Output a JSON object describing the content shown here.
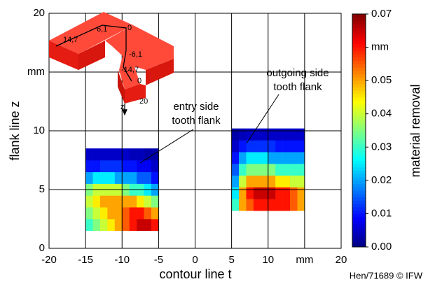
{
  "chart_data": {
    "type": "heatmap",
    "xlabel": "contour line t",
    "ylabel": "flank line z",
    "colorbar_label": "material removal",
    "footer": "Hen/71689 © IFW",
    "xlim": [
      -20,
      20
    ],
    "ylim": [
      0,
      20
    ],
    "xticks": [
      -20,
      -15,
      -10,
      -5,
      0,
      5,
      10,
      {
        "value": 15,
        "label": "mm"
      },
      20
    ],
    "yticks": [
      0,
      5,
      10,
      {
        "value": 15,
        "label": "mm"
      },
      20
    ],
    "grid": true,
    "colormap": "jet",
    "clim": [
      0,
      0.07
    ],
    "cticks": [
      {
        "value": 0,
        "label": "0.00"
      },
      0.01,
      0.02,
      0.03,
      0.04,
      0.05,
      {
        "value": 0.06,
        "label": "mm"
      },
      0.07
    ],
    "regions": [
      {
        "t_edges": [
          -15,
          -14,
          -13,
          -12,
          -11,
          -10,
          -9,
          -8,
          -7,
          -6,
          -5
        ],
        "z_edges": [
          1.5,
          2.5,
          3.5,
          4.5,
          5.5,
          6.5,
          7.5,
          8.5
        ],
        "values": [
          [
            0.03,
            0.035,
            0.04,
            0.045,
            0.05,
            0.055,
            0.06,
            0.065,
            0.065,
            0.06
          ],
          [
            0.035,
            0.04,
            0.045,
            0.05,
            0.05,
            0.055,
            0.06,
            0.06,
            0.055,
            0.05
          ],
          [
            0.04,
            0.045,
            0.05,
            0.05,
            0.05,
            0.05,
            0.05,
            0.045,
            0.04,
            0.035
          ],
          [
            0.035,
            0.04,
            0.04,
            0.04,
            0.04,
            0.035,
            0.03,
            0.03,
            0.025,
            0.02
          ],
          [
            0.02,
            0.025,
            0.025,
            0.025,
            0.02,
            0.02,
            0.02,
            0.015,
            0.015,
            0.01
          ],
          [
            0.01,
            0.01,
            0.012,
            0.012,
            0.012,
            0.01,
            0.01,
            0.008,
            0.008,
            0.005
          ],
          [
            0.005,
            0.005,
            0.005,
            0.005,
            0.005,
            0.005,
            0.004,
            0.004,
            0.003,
            0.003
          ]
        ]
      },
      {
        "t_edges": [
          5,
          6,
          7,
          8,
          9,
          10,
          11,
          12,
          13,
          14,
          15
        ],
        "z_edges": [
          3.2,
          4.2,
          5.2,
          6.2,
          7.2,
          8.2,
          9.2,
          10.2
        ],
        "values": [
          [
            0.03,
            0.05,
            0.055,
            0.06,
            0.06,
            0.06,
            0.06,
            0.06,
            0.055,
            0.05
          ],
          [
            0.025,
            0.05,
            0.06,
            0.065,
            0.065,
            0.065,
            0.06,
            0.06,
            0.055,
            0.05
          ],
          [
            0.02,
            0.04,
            0.05,
            0.05,
            0.05,
            0.05,
            0.045,
            0.045,
            0.04,
            0.04
          ],
          [
            0.015,
            0.03,
            0.035,
            0.035,
            0.035,
            0.035,
            0.03,
            0.03,
            0.03,
            0.03
          ],
          [
            0.01,
            0.02,
            0.025,
            0.025,
            0.025,
            0.02,
            0.02,
            0.02,
            0.02,
            0.02
          ],
          [
            0.005,
            0.01,
            0.012,
            0.012,
            0.012,
            0.012,
            0.01,
            0.01,
            0.01,
            0.01
          ],
          [
            0.003,
            0.004,
            0.005,
            0.005,
            0.005,
            0.005,
            0.005,
            0.005,
            0.005,
            0.005
          ]
        ]
      }
    ],
    "annotations": [
      {
        "lines": [
          "entry side",
          "tooth flank"
        ]
      },
      {
        "lines": [
          "outgoing side",
          "tooth flank"
        ]
      }
    ],
    "inset_labels": [
      "14,7",
      "6,1",
      "0",
      "-6,1",
      "-14,7",
      "0",
      "z",
      "20"
    ]
  }
}
